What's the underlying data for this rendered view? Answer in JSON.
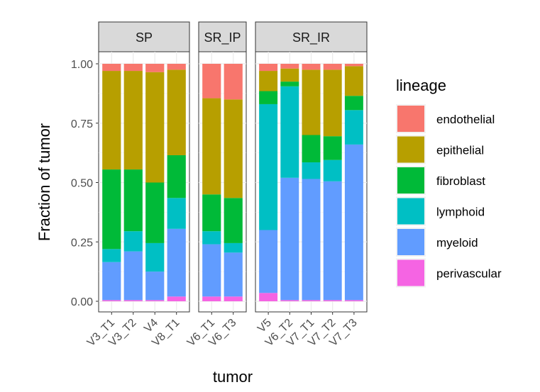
{
  "chart_data": {
    "type": "bar",
    "stacked": true,
    "xlabel": "tumor",
    "ylabel": "Fraction of tumor",
    "ylim": [
      0,
      1
    ],
    "yticks": [
      "0.00",
      "0.25",
      "0.50",
      "0.75",
      "1.00"
    ],
    "legend": {
      "title": "lineage",
      "placement": "right",
      "entries": [
        {
          "name": "endothelial",
          "color": "#F8766D"
        },
        {
          "name": "epithelial",
          "color": "#B79F00"
        },
        {
          "name": "fibroblast",
          "color": "#00BA38"
        },
        {
          "name": "lymphoid",
          "color": "#00BFC4"
        },
        {
          "name": "myeloid",
          "color": "#619CFF"
        },
        {
          "name": "perivascular",
          "color": "#F564E3"
        }
      ]
    },
    "stack_order": [
      "perivascular",
      "myeloid",
      "lymphoid",
      "fibroblast",
      "epithelial",
      "endothelial"
    ],
    "facets": [
      {
        "label": "SP",
        "bars": [
          {
            "tumor": "V3_T1",
            "perivascular": 0.005,
            "myeloid": 0.16,
            "lymphoid": 0.055,
            "fibroblast": 0.335,
            "epithelial": 0.415,
            "endothelial": 0.03
          },
          {
            "tumor": "V3_T2",
            "perivascular": 0.005,
            "myeloid": 0.205,
            "lymphoid": 0.085,
            "fibroblast": 0.26,
            "epithelial": 0.415,
            "endothelial": 0.03
          },
          {
            "tumor": "V4",
            "perivascular": 0.005,
            "myeloid": 0.12,
            "lymphoid": 0.12,
            "fibroblast": 0.255,
            "epithelial": 0.465,
            "endothelial": 0.035
          },
          {
            "tumor": "V8_T1",
            "perivascular": 0.02,
            "myeloid": 0.285,
            "lymphoid": 0.13,
            "fibroblast": 0.18,
            "epithelial": 0.36,
            "endothelial": 0.025
          }
        ]
      },
      {
        "label": "SR_IP",
        "bars": [
          {
            "tumor": "V6_T1",
            "perivascular": 0.02,
            "myeloid": 0.22,
            "lymphoid": 0.055,
            "fibroblast": 0.155,
            "epithelial": 0.405,
            "endothelial": 0.145
          },
          {
            "tumor": "V6_T3",
            "perivascular": 0.02,
            "myeloid": 0.185,
            "lymphoid": 0.04,
            "fibroblast": 0.19,
            "epithelial": 0.415,
            "endothelial": 0.15
          }
        ]
      },
      {
        "label": "SR_IR",
        "bars": [
          {
            "tumor": "V5",
            "perivascular": 0.035,
            "myeloid": 0.265,
            "lymphoid": 0.53,
            "fibroblast": 0.055,
            "epithelial": 0.085,
            "endothelial": 0.03
          },
          {
            "tumor": "V6_T2",
            "perivascular": 0.005,
            "myeloid": 0.515,
            "lymphoid": 0.385,
            "fibroblast": 0.02,
            "epithelial": 0.055,
            "endothelial": 0.02
          },
          {
            "tumor": "V7_T1",
            "perivascular": 0.005,
            "myeloid": 0.51,
            "lymphoid": 0.07,
            "fibroblast": 0.115,
            "epithelial": 0.275,
            "endothelial": 0.025
          },
          {
            "tumor": "V7_T2",
            "perivascular": 0.005,
            "myeloid": 0.5,
            "lymphoid": 0.09,
            "fibroblast": 0.1,
            "epithelial": 0.28,
            "endothelial": 0.025
          },
          {
            "tumor": "V7_T3",
            "perivascular": 0.005,
            "myeloid": 0.655,
            "lymphoid": 0.145,
            "fibroblast": 0.06,
            "epithelial": 0.125,
            "endothelial": 0.01
          }
        ]
      }
    ]
  }
}
